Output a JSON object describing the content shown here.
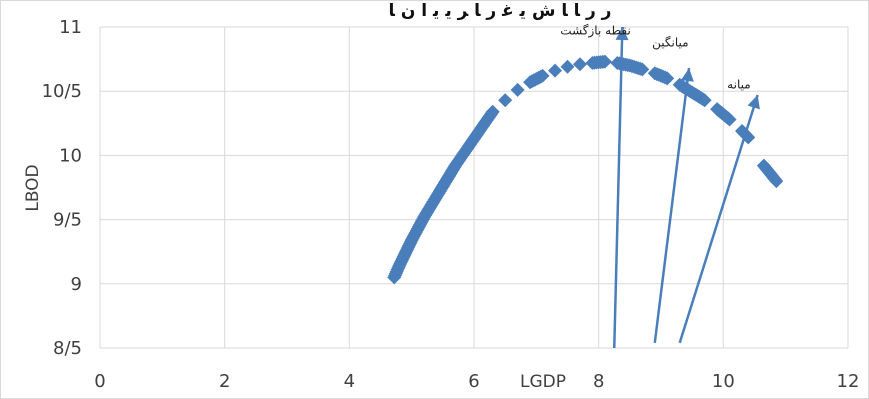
{
  "chart_data": {
    "type": "scatter",
    "title": "ﺭ ﺭ ﺎ ﺎ ﺵ ﻳ ﻏ ﺭ ﺎ ﺮ ﻳ ﻳ ﺍ ﻥ ﺎ",
    "xlabel": "LGDP",
    "ylabel": "LBOD",
    "xlim": [
      0,
      12
    ],
    "ylim": [
      8.5,
      11
    ],
    "x_ticks": [
      "0",
      "2",
      "4",
      "6",
      "8",
      "10",
      "12"
    ],
    "y_ticks": [
      "8/5",
      "9",
      "9/5",
      "10",
      "10/5",
      "11"
    ],
    "grid": true,
    "marker_color": "#4a7ebb",
    "series": [
      {
        "points": [
          [
            4.72,
            9.05
          ],
          [
            4.8,
            9.14
          ],
          [
            4.9,
            9.24
          ],
          [
            5.0,
            9.34
          ],
          [
            5.1,
            9.43
          ],
          [
            5.2,
            9.52
          ],
          [
            5.3,
            9.6
          ],
          [
            5.4,
            9.68
          ],
          [
            5.5,
            9.76
          ],
          [
            5.6,
            9.84
          ],
          [
            5.7,
            9.92
          ],
          [
            5.8,
            9.99
          ],
          [
            5.9,
            10.06
          ],
          [
            6.0,
            10.13
          ],
          [
            6.1,
            10.2
          ],
          [
            6.2,
            10.27
          ],
          [
            6.3,
            10.34
          ],
          [
            6.5,
            10.43
          ],
          [
            6.7,
            10.51
          ],
          [
            6.9,
            10.57
          ],
          [
            7.1,
            10.62
          ],
          [
            7.3,
            10.66
          ],
          [
            7.5,
            10.69
          ],
          [
            7.7,
            10.71
          ],
          [
            7.9,
            10.72
          ],
          [
            8.1,
            10.73
          ],
          [
            8.3,
            10.72
          ],
          [
            8.5,
            10.7
          ],
          [
            8.7,
            10.67
          ],
          [
            8.9,
            10.64
          ],
          [
            9.1,
            10.6
          ],
          [
            9.3,
            10.55
          ],
          [
            9.5,
            10.49
          ],
          [
            9.7,
            10.43
          ],
          [
            9.9,
            10.36
          ],
          [
            10.1,
            10.28
          ],
          [
            10.3,
            10.19
          ],
          [
            10.4,
            10.14
          ],
          [
            10.65,
            9.92
          ],
          [
            10.75,
            9.86
          ],
          [
            10.85,
            9.8
          ]
        ]
      }
    ],
    "annotations": [
      {
        "label": "نقطه بازگشت",
        "x": 7.95,
        "y": 10.94,
        "arrow_from": [
          8.25,
          8.5
        ],
        "arrow_to": [
          8.38,
          11.0
        ]
      },
      {
        "label": "میانگین",
        "x": 9.15,
        "y": 10.85,
        "arrow_from": [
          8.9,
          8.54
        ],
        "arrow_to": [
          9.45,
          10.68
        ]
      },
      {
        "label": "میانه",
        "x": 10.25,
        "y": 10.52,
        "arrow_from": [
          9.3,
          8.54
        ],
        "arrow_to": [
          10.55,
          10.47
        ]
      }
    ]
  }
}
